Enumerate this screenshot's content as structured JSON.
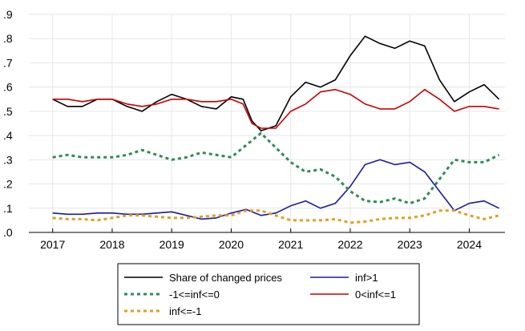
{
  "chart_data": {
    "type": "line",
    "title": "",
    "xlabel": "",
    "ylabel": "",
    "x_tick_labels": [
      "2017",
      "2018",
      "2019",
      "2020",
      "2021",
      "2022",
      "2023",
      "2024"
    ],
    "x_range": [
      2016.6,
      2024.6
    ],
    "ylim": [
      0,
      0.9
    ],
    "y_ticks": [
      0,
      0.1,
      0.2,
      0.3,
      0.4,
      0.5,
      0.6,
      0.7,
      0.8,
      0.9
    ],
    "y_tick_labels": [
      ".0",
      ".1",
      ".2",
      ".3",
      ".4",
      ".5",
      ".6",
      ".7",
      ".8",
      ".9"
    ],
    "grid": "vertical and horizontal",
    "legend_position": "bottom",
    "series": [
      {
        "name": "Share of changed prices",
        "color": "#000000",
        "style": "solid",
        "points": [
          [
            2017.0,
            0.55
          ],
          [
            2017.25,
            0.52
          ],
          [
            2017.5,
            0.52
          ],
          [
            2017.75,
            0.55
          ],
          [
            2018.0,
            0.55
          ],
          [
            2018.25,
            0.52
          ],
          [
            2018.5,
            0.5
          ],
          [
            2018.75,
            0.54
          ],
          [
            2019.0,
            0.57
          ],
          [
            2019.25,
            0.55
          ],
          [
            2019.5,
            0.52
          ],
          [
            2019.75,
            0.51
          ],
          [
            2020.0,
            0.56
          ],
          [
            2020.2,
            0.55
          ],
          [
            2020.35,
            0.46
          ],
          [
            2020.5,
            0.42
          ],
          [
            2020.75,
            0.44
          ],
          [
            2021.0,
            0.56
          ],
          [
            2021.25,
            0.62
          ],
          [
            2021.5,
            0.6
          ],
          [
            2021.75,
            0.63
          ],
          [
            2022.0,
            0.73
          ],
          [
            2022.25,
            0.81
          ],
          [
            2022.5,
            0.78
          ],
          [
            2022.75,
            0.76
          ],
          [
            2023.0,
            0.79
          ],
          [
            2023.25,
            0.77
          ],
          [
            2023.5,
            0.63
          ],
          [
            2023.75,
            0.54
          ],
          [
            2024.0,
            0.58
          ],
          [
            2024.25,
            0.61
          ],
          [
            2024.5,
            0.55
          ]
        ]
      },
      {
        "name": "inf>1",
        "color": "#1a1aa6",
        "style": "solid",
        "points": [
          [
            2017.0,
            0.08
          ],
          [
            2017.25,
            0.075
          ],
          [
            2017.5,
            0.075
          ],
          [
            2017.75,
            0.08
          ],
          [
            2018.0,
            0.08
          ],
          [
            2018.25,
            0.075
          ],
          [
            2018.5,
            0.075
          ],
          [
            2018.75,
            0.08
          ],
          [
            2019.0,
            0.085
          ],
          [
            2019.25,
            0.07
          ],
          [
            2019.5,
            0.055
          ],
          [
            2019.75,
            0.06
          ],
          [
            2020.0,
            0.08
          ],
          [
            2020.25,
            0.095
          ],
          [
            2020.5,
            0.07
          ],
          [
            2020.75,
            0.08
          ],
          [
            2021.0,
            0.11
          ],
          [
            2021.25,
            0.13
          ],
          [
            2021.5,
            0.1
          ],
          [
            2021.75,
            0.12
          ],
          [
            2022.0,
            0.19
          ],
          [
            2022.25,
            0.28
          ],
          [
            2022.5,
            0.3
          ],
          [
            2022.75,
            0.28
          ],
          [
            2023.0,
            0.29
          ],
          [
            2023.25,
            0.25
          ],
          [
            2023.5,
            0.17
          ],
          [
            2023.75,
            0.09
          ],
          [
            2024.0,
            0.12
          ],
          [
            2024.25,
            0.13
          ],
          [
            2024.5,
            0.1
          ]
        ]
      },
      {
        "name": "-1<=inf<=0",
        "color": "#2e8b57",
        "style": "dashed",
        "points": [
          [
            2017.0,
            0.31
          ],
          [
            2017.25,
            0.32
          ],
          [
            2017.5,
            0.31
          ],
          [
            2017.75,
            0.31
          ],
          [
            2018.0,
            0.31
          ],
          [
            2018.25,
            0.32
          ],
          [
            2018.5,
            0.34
          ],
          [
            2018.75,
            0.32
          ],
          [
            2019.0,
            0.3
          ],
          [
            2019.25,
            0.31
          ],
          [
            2019.5,
            0.33
          ],
          [
            2019.75,
            0.32
          ],
          [
            2020.0,
            0.31
          ],
          [
            2020.25,
            0.36
          ],
          [
            2020.5,
            0.41
          ],
          [
            2020.75,
            0.35
          ],
          [
            2021.0,
            0.29
          ],
          [
            2021.25,
            0.25
          ],
          [
            2021.5,
            0.26
          ],
          [
            2021.75,
            0.23
          ],
          [
            2022.0,
            0.17
          ],
          [
            2022.25,
            0.13
          ],
          [
            2022.5,
            0.125
          ],
          [
            2022.75,
            0.14
          ],
          [
            2023.0,
            0.12
          ],
          [
            2023.25,
            0.14
          ],
          [
            2023.5,
            0.22
          ],
          [
            2023.75,
            0.3
          ],
          [
            2024.0,
            0.29
          ],
          [
            2024.25,
            0.29
          ],
          [
            2024.5,
            0.32
          ]
        ]
      },
      {
        "name": "0<inf<=1",
        "color": "#cc0000",
        "style": "solid",
        "points": [
          [
            2017.0,
            0.55
          ],
          [
            2017.25,
            0.55
          ],
          [
            2017.5,
            0.54
          ],
          [
            2017.75,
            0.55
          ],
          [
            2018.0,
            0.55
          ],
          [
            2018.25,
            0.53
          ],
          [
            2018.5,
            0.52
          ],
          [
            2018.75,
            0.53
          ],
          [
            2019.0,
            0.55
          ],
          [
            2019.25,
            0.55
          ],
          [
            2019.5,
            0.54
          ],
          [
            2019.75,
            0.54
          ],
          [
            2020.0,
            0.55
          ],
          [
            2020.2,
            0.53
          ],
          [
            2020.35,
            0.45
          ],
          [
            2020.5,
            0.43
          ],
          [
            2020.75,
            0.43
          ],
          [
            2021.0,
            0.5
          ],
          [
            2021.25,
            0.53
          ],
          [
            2021.5,
            0.58
          ],
          [
            2021.75,
            0.59
          ],
          [
            2022.0,
            0.57
          ],
          [
            2022.25,
            0.53
          ],
          [
            2022.5,
            0.51
          ],
          [
            2022.75,
            0.51
          ],
          [
            2023.0,
            0.54
          ],
          [
            2023.25,
            0.59
          ],
          [
            2023.5,
            0.55
          ],
          [
            2023.75,
            0.5
          ],
          [
            2024.0,
            0.52
          ],
          [
            2024.25,
            0.52
          ],
          [
            2024.5,
            0.51
          ]
        ]
      },
      {
        "name": "inf<=-1",
        "color": "#e0a020",
        "style": "dashed",
        "points": [
          [
            2017.0,
            0.06
          ],
          [
            2017.25,
            0.055
          ],
          [
            2017.5,
            0.055
          ],
          [
            2017.75,
            0.05
          ],
          [
            2018.0,
            0.06
          ],
          [
            2018.25,
            0.07
          ],
          [
            2018.5,
            0.07
          ],
          [
            2018.75,
            0.065
          ],
          [
            2019.0,
            0.06
          ],
          [
            2019.25,
            0.06
          ],
          [
            2019.5,
            0.065
          ],
          [
            2019.75,
            0.07
          ],
          [
            2020.0,
            0.07
          ],
          [
            2020.25,
            0.09
          ],
          [
            2020.5,
            0.09
          ],
          [
            2020.75,
            0.07
          ],
          [
            2021.0,
            0.05
          ],
          [
            2021.25,
            0.05
          ],
          [
            2021.5,
            0.05
          ],
          [
            2021.75,
            0.055
          ],
          [
            2022.0,
            0.04
          ],
          [
            2022.25,
            0.045
          ],
          [
            2022.5,
            0.055
          ],
          [
            2022.75,
            0.06
          ],
          [
            2023.0,
            0.06
          ],
          [
            2023.25,
            0.07
          ],
          [
            2023.5,
            0.09
          ],
          [
            2023.75,
            0.09
          ],
          [
            2024.0,
            0.07
          ],
          [
            2024.25,
            0.055
          ],
          [
            2024.5,
            0.07
          ]
        ]
      }
    ],
    "legend_rows": [
      [
        0,
        1
      ],
      [
        2,
        3
      ],
      [
        4
      ]
    ]
  }
}
